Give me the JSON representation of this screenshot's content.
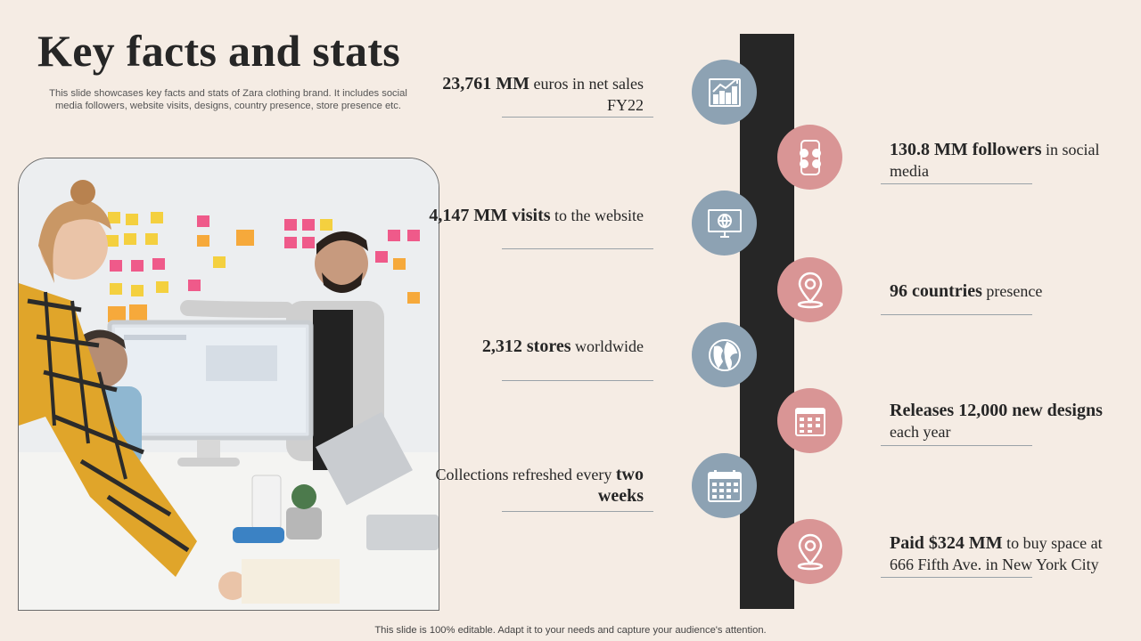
{
  "header": {
    "title": "Key facts and stats",
    "subtitle": "This slide showcases key facts and stats of Zara clothing brand. It includes social media followers, website visits, designs, country presence, store presence etc."
  },
  "colors": {
    "accent_blue": "#8da2b3",
    "accent_pink": "#d99595",
    "timeline_bar": "#262626",
    "background": "#f5ece4"
  },
  "facts": [
    {
      "side": "left",
      "icon": "growth-chart-icon",
      "color": "blue",
      "bold": "23,761 MM",
      "pre": "",
      "post": " euros in net sales FY22"
    },
    {
      "side": "right",
      "icon": "social-phone-icon",
      "color": "pink",
      "bold": "130.8 MM followers",
      "pre": "",
      "post": " in social media"
    },
    {
      "side": "left",
      "icon": "web-monitor-icon",
      "color": "blue",
      "bold": "4,147 MM visits",
      "pre": "",
      "post": " to the website"
    },
    {
      "side": "right",
      "icon": "location-pin-icon",
      "color": "pink",
      "bold": "96 countries",
      "pre": "",
      "post": " presence"
    },
    {
      "side": "left",
      "icon": "globe-icon",
      "color": "blue",
      "bold": "2,312 stores",
      "pre": "",
      "post": " worldwide"
    },
    {
      "side": "right",
      "icon": "calendar-icon",
      "color": "pink",
      "bold": "Releases 12,000 new designs",
      "pre": "",
      "post": " each year"
    },
    {
      "side": "left",
      "icon": "calendar-grid-icon",
      "color": "blue",
      "bold": "two weeks",
      "pre": "Collections refreshed every ",
      "post": ""
    },
    {
      "side": "right",
      "icon": "location-pin-icon",
      "color": "pink",
      "bold": "Paid $324 MM",
      "pre": "",
      "post": " to buy space at 666 Fifth Ave. in New York City"
    }
  ],
  "footer": {
    "text": "This slide is 100% editable. Adapt it to your needs and capture your audience's attention."
  }
}
